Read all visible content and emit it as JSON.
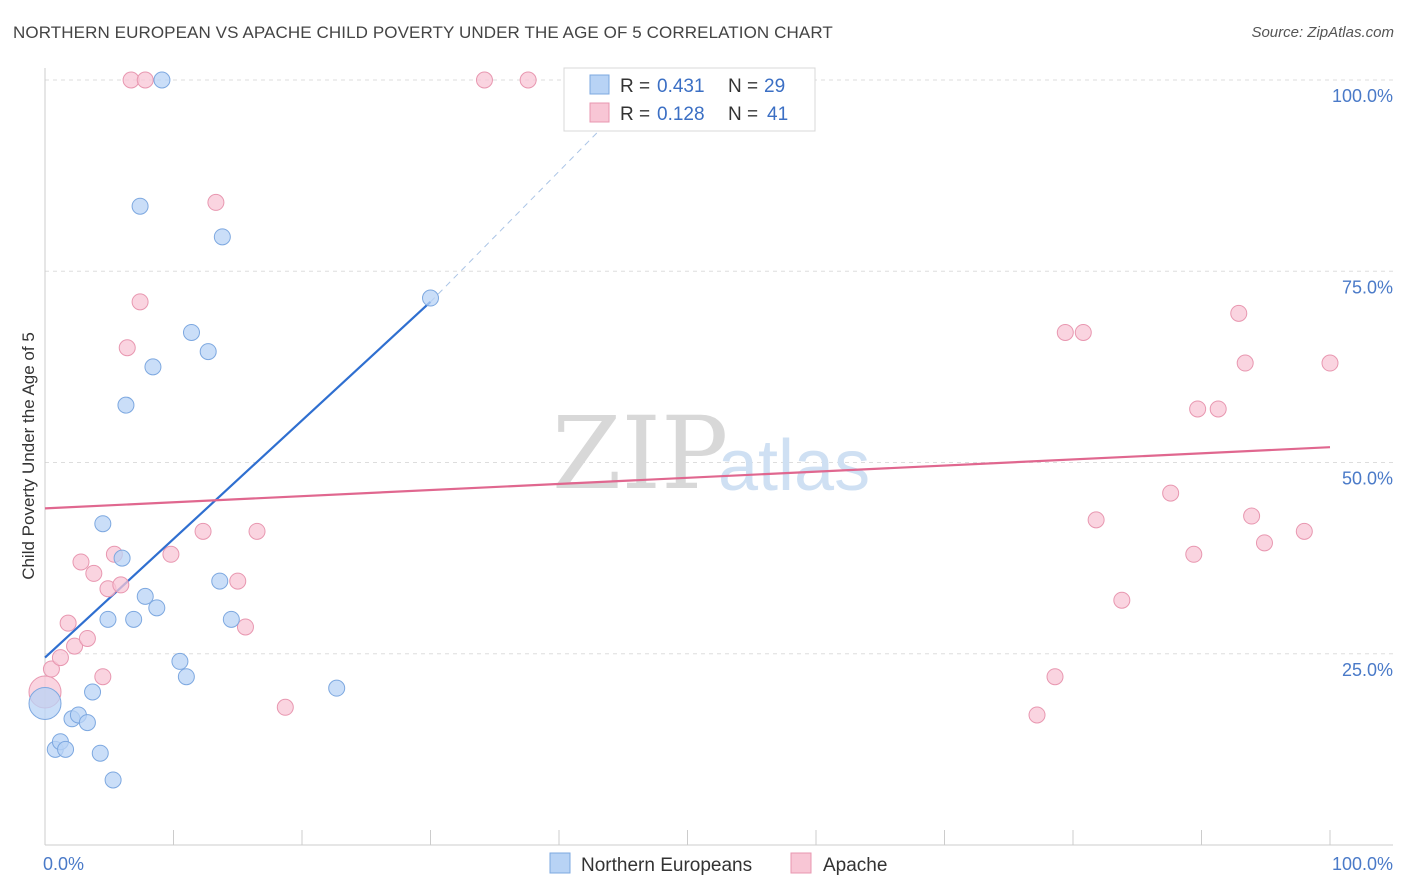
{
  "header": {
    "title": "NORTHERN EUROPEAN VS APACHE CHILD POVERTY UNDER THE AGE OF 5 CORRELATION CHART",
    "source": "Source: ZipAtlas.com"
  },
  "watermark": {
    "zip": "ZIP",
    "atlas": "atlas"
  },
  "colors": {
    "blue_fill": "#b8d3f5",
    "blue_stroke": "#7da8e0",
    "blue_line": "#2f6fd0",
    "pink_fill": "#f8c6d5",
    "pink_stroke": "#e897b0",
    "pink_line": "#e0678f",
    "grid": "#dddddd",
    "tick_text": "#4a7ac8"
  },
  "legend": {
    "rows": [
      {
        "r_label": "R =",
        "r_value": "0.431",
        "n_label": "N =",
        "n_value": "29"
      },
      {
        "r_label": "R =",
        "r_value": "0.128",
        "n_label": "N =",
        "n_value": "41"
      }
    ]
  },
  "bottom_legend": [
    "Northern Europeans",
    "Apache"
  ],
  "chart_data": {
    "type": "scatter",
    "title": "NORTHERN EUROPEAN VS APACHE CHILD POVERTY UNDER THE AGE OF 5 CORRELATION CHART",
    "xlabel": "",
    "ylabel": "Child Poverty Under the Age of 5",
    "xlim": [
      0,
      100
    ],
    "ylim": [
      0,
      100
    ],
    "x_tick_labels": [
      "0.0%",
      "100.0%"
    ],
    "y_tick_labels": [
      "25.0%",
      "50.0%",
      "75.0%",
      "100.0%"
    ],
    "y_ticks": [
      25,
      50,
      75,
      100
    ],
    "series": [
      {
        "name": "Northern Europeans",
        "r": 0.431,
        "n": 29,
        "trend": {
          "x0": 0,
          "y0": 24.5,
          "x1": 30,
          "y1": 71.0,
          "dashed_to_x": 47,
          "dashed_to_y": 100
        },
        "points": [
          [
            0,
            18.5
          ],
          [
            0.8,
            12.5
          ],
          [
            1.2,
            13.5
          ],
          [
            1.6,
            12.5
          ],
          [
            2.1,
            16.5
          ],
          [
            2.6,
            17.0
          ],
          [
            3.3,
            16.0
          ],
          [
            3.7,
            20.0
          ],
          [
            4.3,
            12.0
          ],
          [
            5.3,
            8.5
          ],
          [
            4.5,
            42.0
          ],
          [
            6.0,
            37.5
          ],
          [
            4.9,
            29.5
          ],
          [
            6.9,
            29.5
          ],
          [
            7.8,
            32.5
          ],
          [
            8.7,
            31.0
          ],
          [
            10.5,
            24.0
          ],
          [
            11.0,
            22.0
          ],
          [
            13.6,
            34.5
          ],
          [
            14.5,
            29.5
          ],
          [
            22.7,
            20.5
          ],
          [
            6.3,
            57.5
          ],
          [
            8.4,
            62.5
          ],
          [
            11.4,
            67.0
          ],
          [
            12.7,
            64.5
          ],
          [
            7.4,
            83.5
          ],
          [
            13.8,
            79.5
          ],
          [
            9.1,
            100
          ],
          [
            30.0,
            71.5
          ]
        ]
      },
      {
        "name": "Apache",
        "r": 0.128,
        "n": 41,
        "trend": {
          "x0": 0,
          "y0": 44.0,
          "x1": 100,
          "y1": 52.0
        },
        "points": [
          [
            0,
            20.0
          ],
          [
            0.5,
            23.0
          ],
          [
            1.2,
            24.5
          ],
          [
            1.8,
            29.0
          ],
          [
            2.3,
            26.0
          ],
          [
            2.8,
            37.0
          ],
          [
            3.3,
            27.0
          ],
          [
            3.8,
            35.5
          ],
          [
            4.5,
            22.0
          ],
          [
            4.9,
            33.5
          ],
          [
            5.4,
            38.0
          ],
          [
            5.9,
            34.0
          ],
          [
            6.4,
            65.0
          ],
          [
            7.4,
            71.0
          ],
          [
            9.8,
            38.0
          ],
          [
            12.3,
            41.0
          ],
          [
            15.0,
            34.5
          ],
          [
            15.6,
            28.5
          ],
          [
            16.5,
            41.0
          ],
          [
            18.7,
            18.0
          ],
          [
            13.3,
            84.0
          ],
          [
            6.7,
            100
          ],
          [
            7.8,
            100
          ],
          [
            34.2,
            100
          ],
          [
            37.6,
            100
          ],
          [
            77.2,
            17.0
          ],
          [
            78.6,
            22.0
          ],
          [
            79.4,
            67.0
          ],
          [
            80.8,
            67.0
          ],
          [
            81.8,
            42.5
          ],
          [
            83.8,
            32.0
          ],
          [
            87.6,
            46.0
          ],
          [
            89.4,
            38.0
          ],
          [
            89.7,
            57.0
          ],
          [
            91.3,
            57.0
          ],
          [
            92.9,
            69.5
          ],
          [
            93.4,
            63.0
          ],
          [
            93.9,
            43.0
          ],
          [
            94.9,
            39.5
          ],
          [
            98.0,
            41.0
          ],
          [
            100,
            63.0
          ]
        ]
      }
    ]
  }
}
